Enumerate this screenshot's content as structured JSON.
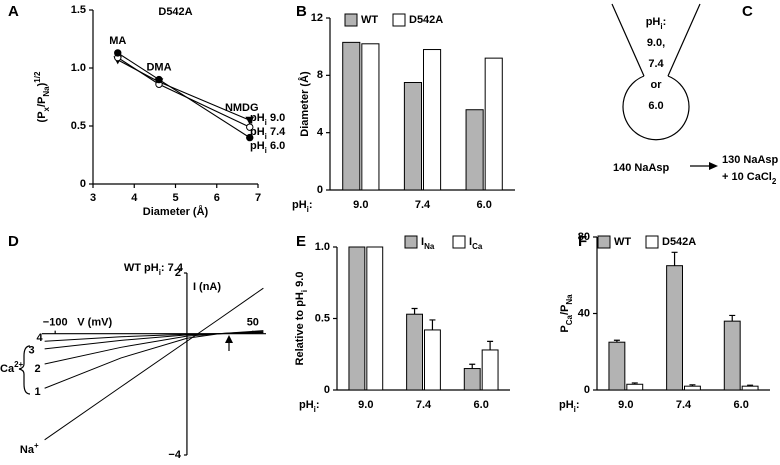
{
  "figure_labels": [
    "A",
    "B",
    "C",
    "D",
    "E",
    "F"
  ],
  "chart_data": [
    {
      "type": "line",
      "title": "D542A",
      "xlabel": "Diameter (Å)",
      "ylabel": [
        {
          "text": "(P"
        },
        {
          "text": "x",
          "shift": "sub"
        },
        {
          "text": "/P"
        },
        {
          "text": "Na",
          "shift": "sub"
        },
        {
          "text": ")"
        },
        {
          "text": "1/2",
          "shift": "super"
        }
      ],
      "x": [
        3.6,
        4.6,
        6.8
      ],
      "point_labels": [
        "MA",
        "DMA",
        "NMDG"
      ],
      "series": [
        {
          "name": [
            {
              "text": "pH"
            },
            {
              "text": "i",
              "shift": "sub"
            },
            {
              "text": " 9.0"
            }
          ],
          "color": "#000000",
          "marker": "triangle",
          "fill": "#000000",
          "values": [
            1.07,
            0.88,
            0.55
          ]
        },
        {
          "name": [
            {
              "text": "pH"
            },
            {
              "text": "i",
              "shift": "sub"
            },
            {
              "text": " 7.4"
            }
          ],
          "color": "#000000",
          "marker": "circle",
          "fill": "#ffffff",
          "values": [
            1.09,
            0.86,
            0.49
          ]
        },
        {
          "name": [
            {
              "text": "pH"
            },
            {
              "text": "i",
              "shift": "sub"
            },
            {
              "text": " 6.0"
            }
          ],
          "color": "#000000",
          "marker": "circle",
          "fill": "#000000",
          "values": [
            1.13,
            0.9,
            0.4
          ]
        }
      ],
      "xlim": [
        3,
        7
      ],
      "xticks": [
        3,
        4,
        5,
        6,
        7
      ],
      "ylim": [
        0,
        1.5
      ],
      "yticks": [
        0,
        0.5,
        {
          "value": 1,
          "label": "1.0"
        },
        1.5
      ]
    },
    {
      "type": "bar",
      "xlabel": [
        {
          "text": "pH"
        },
        {
          "text": "i",
          "shift": "sub"
        },
        {
          "text": ":"
        }
      ],
      "ylabel": "Diameter (Å)",
      "categories": [
        "9.0",
        "7.4",
        "6.0"
      ],
      "series": [
        {
          "name": "WT",
          "color": "#b3b3b3",
          "values": [
            10.3,
            7.5,
            5.6
          ]
        },
        {
          "name": "D542A",
          "color": "#ffffff",
          "values": [
            10.2,
            9.8,
            9.2
          ]
        }
      ],
      "ylim": [
        0,
        12
      ],
      "yticks": [
        0,
        4,
        8,
        12
      ],
      "legend": "top"
    },
    {
      "type": "line",
      "axes": "cross",
      "title": [
        {
          "text": "WT  pH"
        },
        {
          "text": "i",
          "shift": "sub"
        },
        {
          "text": ": 7.4"
        }
      ],
      "xlabel": "V (mV)",
      "ylabel": "I (nA)",
      "group_label": [
        {
          "text": "Ca"
        },
        {
          "text": "2+",
          "shift": "super"
        }
      ],
      "x": [
        -108,
        -50,
        0,
        25,
        58
      ],
      "series": [
        {
          "name": "1",
          "color": "#000000",
          "values": [
            -1.8,
            -0.8,
            -0.15,
            0.0,
            0.1
          ]
        },
        {
          "name": "2",
          "color": "#000000",
          "values": [
            -1.0,
            -0.45,
            -0.08,
            0.0,
            0.08
          ]
        },
        {
          "name": "3",
          "color": "#000000",
          "values": [
            -0.5,
            -0.22,
            -0.04,
            0.0,
            0.05
          ]
        },
        {
          "name": "4",
          "color": "#000000",
          "values": [
            -0.25,
            -0.1,
            -0.02,
            0.0,
            0.03
          ]
        },
        {
          "name": [
            {
              "text": "Na"
            },
            {
              "text": "+",
              "shift": "super"
            }
          ],
          "color": "#000000",
          "values": [
            -3.5,
            -1.75,
            -0.25,
            0.5,
            1.5
          ]
        }
      ],
      "xlim": [
        -110,
        60
      ],
      "xticks": [
        {
          "value": -100,
          "label": "−100"
        },
        50
      ],
      "ylim": [
        -4,
        2
      ],
      "yticks": [
        {
          "value": -4,
          "label": "−4"
        },
        2
      ]
    },
    {
      "type": "bar",
      "xlabel": [
        {
          "text": "pH"
        },
        {
          "text": "i",
          "shift": "sub"
        },
        {
          "text": ":"
        }
      ],
      "ylabel": [
        {
          "text": "Relative to pH"
        },
        {
          "text": "i",
          "shift": "sub"
        },
        {
          "text": " 9.0"
        }
      ],
      "categories": [
        "9.0",
        "7.4",
        "6.0"
      ],
      "series": [
        {
          "name": [
            {
              "text": "I"
            },
            {
              "text": "Na",
              "shift": "sub"
            }
          ],
          "color": "#b3b3b3",
          "values": [
            1.0,
            0.53,
            0.15
          ],
          "errors": [
            0,
            0.04,
            0.03
          ]
        },
        {
          "name": [
            {
              "text": "I"
            },
            {
              "text": "Ca",
              "shift": "sub"
            }
          ],
          "color": "#ffffff",
          "values": [
            1.0,
            0.42,
            0.28
          ],
          "errors": [
            0,
            0.07,
            0.06
          ]
        }
      ],
      "ylim": [
        0,
        1
      ],
      "yticks": [
        0,
        0.5,
        {
          "value": 1,
          "label": "1.0"
        }
      ],
      "legend": "top"
    },
    {
      "type": "bar",
      "xlabel": [
        {
          "text": "pH"
        },
        {
          "text": "i",
          "shift": "sub"
        },
        {
          "text": ":"
        }
      ],
      "ylabel": [
        {
          "text": "P"
        },
        {
          "text": "Ca",
          "shift": "sub"
        },
        {
          "text": "/P"
        },
        {
          "text": "Na",
          "shift": "sub"
        }
      ],
      "categories": [
        "9.0",
        "7.4",
        "6.0"
      ],
      "series": [
        {
          "name": "WT",
          "color": "#b3b3b3",
          "values": [
            25,
            65,
            36
          ],
          "errors": [
            1,
            7,
            3
          ]
        },
        {
          "name": "D542A",
          "color": "#ffffff",
          "values": [
            3,
            2,
            2
          ],
          "errors": [
            0.7,
            0.7,
            0.5
          ]
        }
      ],
      "ylim": [
        0,
        80
      ],
      "yticks": [
        0,
        40,
        80
      ],
      "legend": "top"
    }
  ],
  "diagram": {
    "pipette": [
      [
        {
          "text": "pH"
        },
        {
          "text": "i",
          "shift": "sub"
        },
        {
          "text": ":"
        }
      ],
      [
        {
          "text": "9.0,"
        }
      ],
      [
        {
          "text": "7.4"
        }
      ],
      [
        {
          "text": "or"
        }
      ],
      [
        {
          "text": "6.0"
        }
      ]
    ],
    "bath": "140 NaAsp",
    "solution": [
      [
        {
          "text": "130 NaAsp"
        }
      ],
      [
        {
          "text": "+ 10 CaCl"
        },
        {
          "text": "2",
          "shift": "sub"
        }
      ]
    ]
  }
}
